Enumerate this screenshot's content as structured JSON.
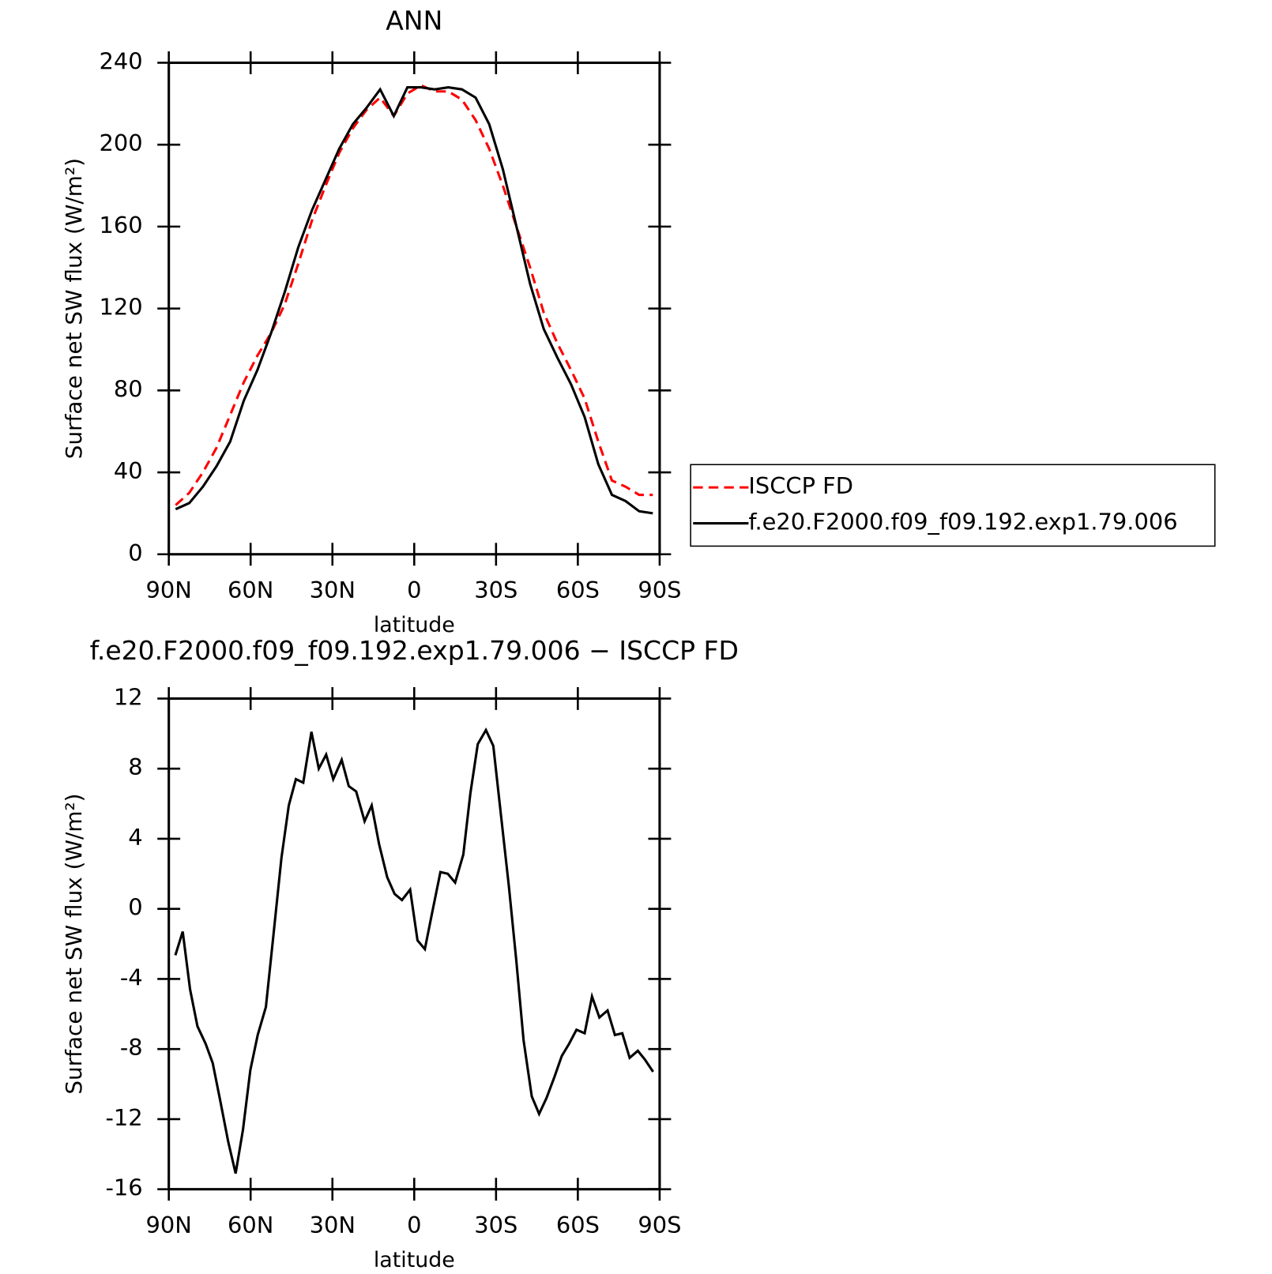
{
  "chart_data": [
    {
      "type": "line",
      "title": "ANN",
      "xlabel": "latitude",
      "ylabel": "Surface net SW flux (W/m²)",
      "x": [
        87.5,
        82.5,
        77.5,
        72.5,
        67.5,
        62.5,
        57.5,
        52.5,
        47.5,
        42.5,
        37.5,
        32.5,
        27.5,
        22.5,
        17.5,
        12.5,
        7.5,
        2.5,
        -2.5,
        -7.5,
        -12.5,
        -17.5,
        -22.5,
        -27.5,
        -32.5,
        -37.5,
        -42.5,
        -47.5,
        -52.5,
        -57.5,
        -62.5,
        -67.5,
        -72.5,
        -77.5,
        -82.5,
        -87.5
      ],
      "series": [
        {
          "name": "ISCCP FD",
          "color": "#ff0000",
          "dashed": true,
          "values": [
            24,
            30,
            40,
            52,
            68,
            84,
            97,
            108,
            122,
            142,
            163,
            180,
            196,
            208,
            217,
            223,
            214,
            225,
            229,
            226,
            226,
            222,
            212,
            198,
            180,
            160,
            140,
            118,
            103,
            90,
            76,
            55,
            36,
            33,
            29,
            29
          ]
        },
        {
          "name": "f.e20.F2000.f09_f09.192.exp1.79.006",
          "color": "#000000",
          "dashed": false,
          "values": [
            22,
            25,
            33,
            43,
            55,
            75,
            90,
            108,
            128,
            150,
            168,
            183,
            198,
            210,
            218,
            227,
            214,
            228,
            228,
            227,
            228,
            227,
            223,
            210,
            188,
            160,
            132,
            110,
            96,
            83,
            67,
            44,
            29,
            26,
            21,
            20
          ]
        }
      ],
      "xlim": [
        90,
        -90
      ],
      "xticks": [
        {
          "value": 90,
          "label": "90N"
        },
        {
          "value": 60,
          "label": "60N"
        },
        {
          "value": 30,
          "label": "30N"
        },
        0,
        {
          "value": -30,
          "label": "30S"
        },
        {
          "value": -60,
          "label": "60S"
        },
        {
          "value": -90,
          "label": "90S"
        }
      ],
      "ylim": [
        0,
        240
      ],
      "yticks": [
        0,
        40,
        80,
        120,
        160,
        200,
        240
      ],
      "legend": "right"
    },
    {
      "type": "line",
      "title": "f.e20.F2000.f09_f09.192.exp1.79.006 − ISCCP FD",
      "xlabel": "latitude",
      "ylabel": "Surface net SW flux (W/m²)",
      "x": [
        87.6,
        84.9,
        82.2,
        79.5,
        76.5,
        73.9,
        71.2,
        68.2,
        65.5,
        62.8,
        60.1,
        57.4,
        54.4,
        51.7,
        48.7,
        46.0,
        43.4,
        40.7,
        37.7,
        35.0,
        32.3,
        29.7,
        26.6,
        24.0,
        21.3,
        18.2,
        15.6,
        12.9,
        9.9,
        7.2,
        4.5,
        1.5,
        -1.2,
        -3.9,
        -6.6,
        -9.6,
        -12.3,
        -15.0,
        -18.0,
        -20.6,
        -23.3,
        -26.3,
        -29.0,
        -31.7,
        -34.7,
        -37.4,
        -40.1,
        -43.1,
        -45.8,
        -48.5,
        -51.4,
        -54.1,
        -56.8,
        -59.5,
        -62.5,
        -65.2,
        -67.9,
        -70.9,
        -73.6,
        -76.3,
        -79.0,
        -82.0,
        -84.6,
        -87.6
      ],
      "series": [
        {
          "color": "#000000",
          "dashed": false,
          "values": [
            -2.65,
            -1.3,
            -4.6,
            -6.7,
            -7.7,
            -8.8,
            -10.9,
            -13.3,
            -15.1,
            -12.6,
            -9.2,
            -7.2,
            -5.6,
            -1.6,
            2.9,
            5.9,
            7.4,
            7.2,
            10.1,
            8.0,
            8.8,
            7.4,
            8.5,
            7.0,
            6.7,
            5.0,
            5.9,
            3.7,
            1.8,
            0.85,
            0.5,
            1.1,
            -1.8,
            -2.3,
            -0.2,
            2.1,
            2.0,
            1.5,
            3.1,
            6.6,
            9.4,
            10.2,
            9.3,
            5.5,
            1.3,
            -2.9,
            -7.5,
            -10.7,
            -11.7,
            -10.8,
            -9.6,
            -8.4,
            -7.7,
            -6.9,
            -7.1,
            -5.0,
            -6.2,
            -5.8,
            -7.2,
            -7.1,
            -8.5,
            -8.1,
            -8.6,
            -9.3
          ]
        }
      ],
      "xlim": [
        90,
        -90
      ],
      "xticks": [
        {
          "value": 90,
          "label": "90N"
        },
        {
          "value": 60,
          "label": "60N"
        },
        {
          "value": 30,
          "label": "30N"
        },
        0,
        {
          "value": -30,
          "label": "30S"
        },
        {
          "value": -60,
          "label": "60S"
        },
        {
          "value": -90,
          "label": "90S"
        }
      ],
      "ylim": [
        -16,
        12
      ],
      "yticks": [
        -16,
        -12,
        -8,
        -4,
        0,
        4,
        8,
        12
      ]
    }
  ]
}
